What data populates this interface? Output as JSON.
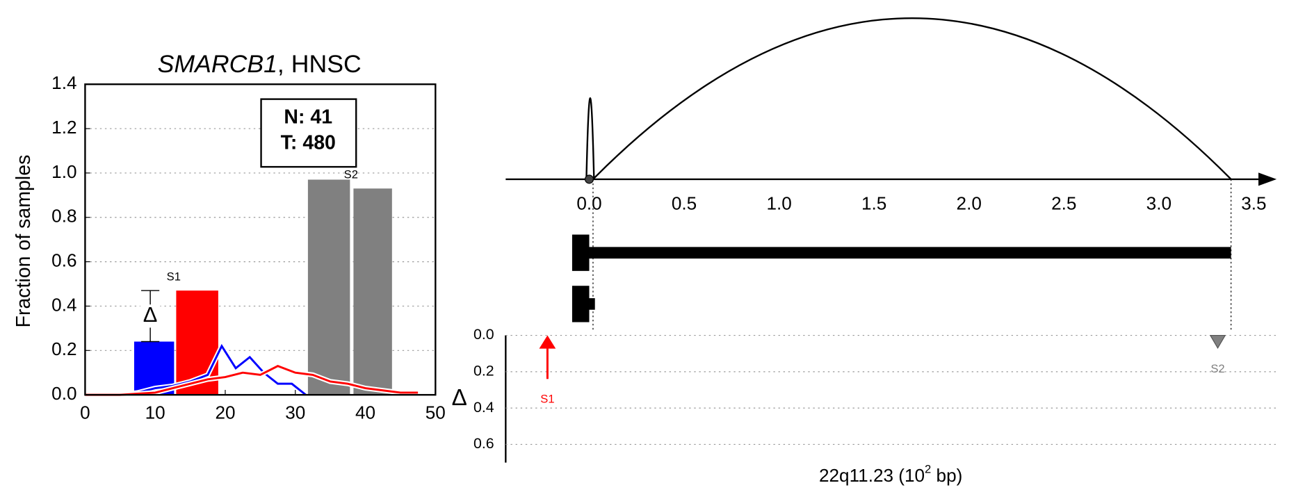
{
  "chart_data": [
    {
      "type": "bar",
      "title": {
        "gene": "SMARCB1",
        "rest": ", HNSC"
      },
      "y_label": "Fraction of samples",
      "xlim": [
        0,
        50
      ],
      "ylim": [
        0,
        1.4
      ],
      "xticks": [
        0,
        10,
        20,
        30,
        40,
        50
      ],
      "yticks": [
        {
          "value": 0,
          "label": "0.0"
        },
        0.2,
        0.4,
        0.6,
        0.8,
        {
          "value": 1,
          "label": "1.0"
        },
        1.2,
        1.4
      ],
      "grid": true,
      "bars": [
        {
          "x": [
            7,
            12.7
          ],
          "value": 0.24,
          "color": "#0000ff"
        },
        {
          "x": [
            13,
            19
          ],
          "value": 0.47,
          "color": "#ff0000",
          "label": "S1"
        },
        {
          "x": [
            31.8,
            37.8
          ],
          "value": 0.97,
          "color": "#808080"
        },
        {
          "x": [
            38.3,
            43.8
          ],
          "value": 0.93,
          "color": "#808080",
          "label": "S2"
        }
      ],
      "delta": {
        "x": 9.3,
        "low": 0.24,
        "high": 0.47,
        "label": "Δ"
      },
      "lines": [
        {
          "color": "#0000ff",
          "x": [
            0,
            5,
            7.5,
            10,
            12.5,
            15,
            17.5,
            19.5,
            21.5,
            23.5,
            25.5,
            27.5,
            29.5,
            31.5
          ],
          "values": [
            0,
            0,
            0.01,
            0.03,
            0.04,
            0.06,
            0.09,
            0.22,
            0.12,
            0.17,
            0.1,
            0.05,
            0.05,
            0.0
          ]
        },
        {
          "color": "#ff0000",
          "x": [
            0,
            5,
            7.5,
            10,
            12.5,
            15,
            17.5,
            20,
            22.5,
            25,
            27.5,
            30,
            32.5,
            35,
            37.5,
            40,
            42.5,
            45,
            47.5
          ],
          "values": [
            0,
            0,
            0.005,
            0.01,
            0.03,
            0.05,
            0.07,
            0.08,
            0.1,
            0.09,
            0.13,
            0.1,
            0.09,
            0.06,
            0.05,
            0.03,
            0.02,
            0.01,
            0.01
          ]
        }
      ],
      "annotation": [
        "N: 41",
        "T: 480"
      ]
    },
    {
      "type": "genomic",
      "xlim": [
        -0.44,
        3.62
      ],
      "xticks": [
        {
          "value": 0,
          "label": "0.0"
        },
        0.5,
        {
          "value": 1,
          "label": "1.0"
        },
        1.5,
        {
          "value": 2,
          "label": "2.0"
        },
        2.5,
        {
          "value": 3,
          "label": "3.0"
        },
        3.5
      ],
      "x_label": [
        "22q11.23 (10",
        "2",
        " bp)"
      ],
      "point": 0,
      "arcs": [
        {
          "start": -0.015,
          "end": 0.025
        },
        {
          "start": 0.02,
          "end": 3.38
        }
      ],
      "genes": [
        {
          "start": -0.09,
          "cds_end": 0,
          "end": 3.38
        },
        {
          "start": -0.09,
          "cds_end": 0,
          "end": 0.03
        }
      ],
      "delta_label": "Δ",
      "delta_ylim": [
        0,
        0.7
      ],
      "delta_yticks": [
        {
          "value": 0,
          "label": "0.0"
        },
        0.2,
        0.4,
        0.6
      ],
      "events": [
        {
          "name": "S1",
          "x": -0.22,
          "delta": 0.24,
          "color": "#ff0000",
          "direction": "up"
        },
        {
          "name": "S2",
          "x": 3.31,
          "delta": 0.07,
          "color": "#808080",
          "direction": "down"
        }
      ]
    }
  ]
}
